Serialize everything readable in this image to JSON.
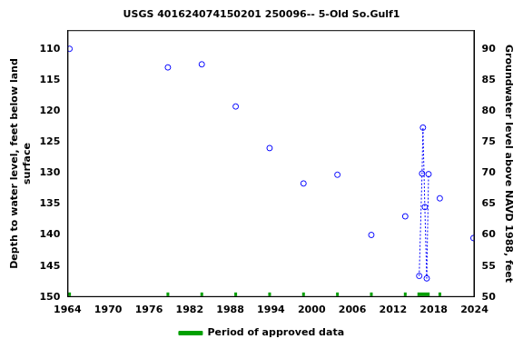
{
  "chart_data": {
    "type": "scatter",
    "title": "USGS 401624074150201 250096-- 5-Old So.Gulf1",
    "y_label": [
      "Depth to water level, feet below land",
      "surface"
    ],
    "y2_label": "Groundwater level above NAVD 1988, feet",
    "x": [
      1964.3,
      1964.3,
      1978.8,
      1978.8,
      1983.8,
      1983.8,
      1988.8,
      1988.8,
      1993.8,
      1993.8,
      1998.8,
      1998.8,
      2003.8,
      2003.8,
      2008.8,
      2008.8,
      2013.8,
      2013.8,
      2015.86,
      2016.28,
      2016.41,
      2016.69,
      2016.97,
      2017.24,
      2017.24,
      2018.9,
      2018.9,
      2023.86
    ],
    "values": [
      110,
      null,
      113,
      null,
      112.5,
      null,
      119.3,
      null,
      126,
      null,
      131.7,
      null,
      130.3,
      null,
      140,
      null,
      137,
      null,
      146.6,
      130.1,
      122.7,
      135.5,
      147,
      130.2,
      null,
      134.1,
      null,
      140.5
    ],
    "color": "#0000ff",
    "marker": "circle",
    "line_style": "dotted",
    "approved": {
      "name": "Period of approved data",
      "color": "#00a000",
      "periods": [
        [
          1964.1,
          1964.5
        ],
        [
          1978.6,
          1979.0
        ],
        [
          1983.6,
          1984.0
        ],
        [
          1988.6,
          1989.0
        ],
        [
          1993.6,
          1994.0
        ],
        [
          1998.6,
          1999.0
        ],
        [
          2003.6,
          2004.0
        ],
        [
          2008.6,
          2009.0
        ],
        [
          2013.6,
          2014.0
        ],
        [
          2015.6,
          2017.4
        ],
        [
          2018.7,
          2019.1
        ]
      ]
    },
    "xlim": [
      1964,
      2024
    ],
    "xticks": [
      1964,
      1970,
      1976,
      1982,
      1988,
      1994,
      2000,
      2006,
      2012,
      2018,
      2024
    ],
    "ylim": [
      107,
      150
    ],
    "yticks": [
      110,
      115,
      120,
      125,
      130,
      135,
      140,
      145,
      150
    ],
    "y2lim": [
      50,
      93
    ],
    "y2ticks": [
      50,
      55,
      60,
      65,
      70,
      75,
      80,
      85,
      90
    ],
    "grid": false,
    "legend": "bottom"
  }
}
